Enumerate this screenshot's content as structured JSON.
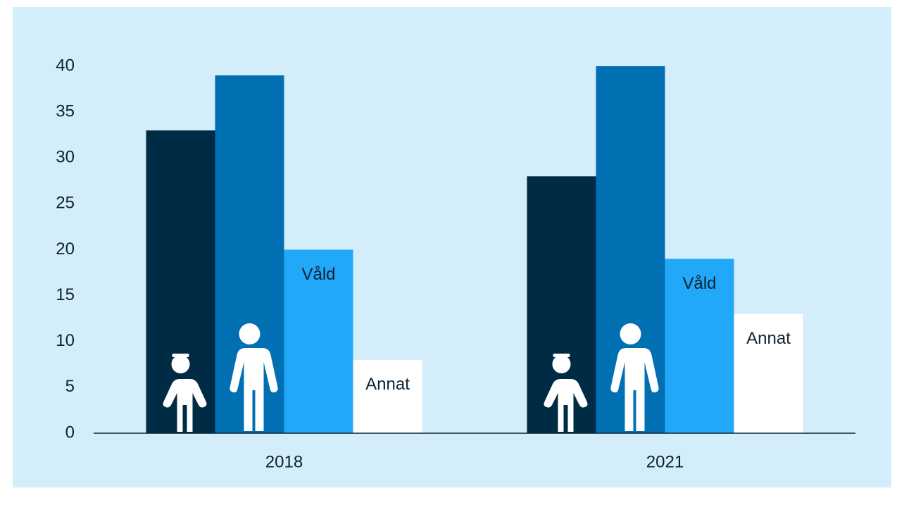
{
  "chart_data": {
    "type": "bar",
    "categories": [
      "2018",
      "2021"
    ],
    "series": [
      {
        "color": "#002b45",
        "values": [
          33,
          28
        ]
      },
      {
        "color": "#0070b3",
        "values": [
          39,
          40
        ]
      },
      {
        "name": "Våld",
        "color": "#22a8f8",
        "values": [
          20,
          19
        ]
      },
      {
        "name": "Annat",
        "color": "#ffffff",
        "values": [
          8,
          13
        ]
      }
    ],
    "ylim": [
      0,
      40
    ],
    "yticks": [
      0,
      5,
      10,
      15,
      20,
      25,
      30,
      35,
      40
    ],
    "grid": false
  }
}
